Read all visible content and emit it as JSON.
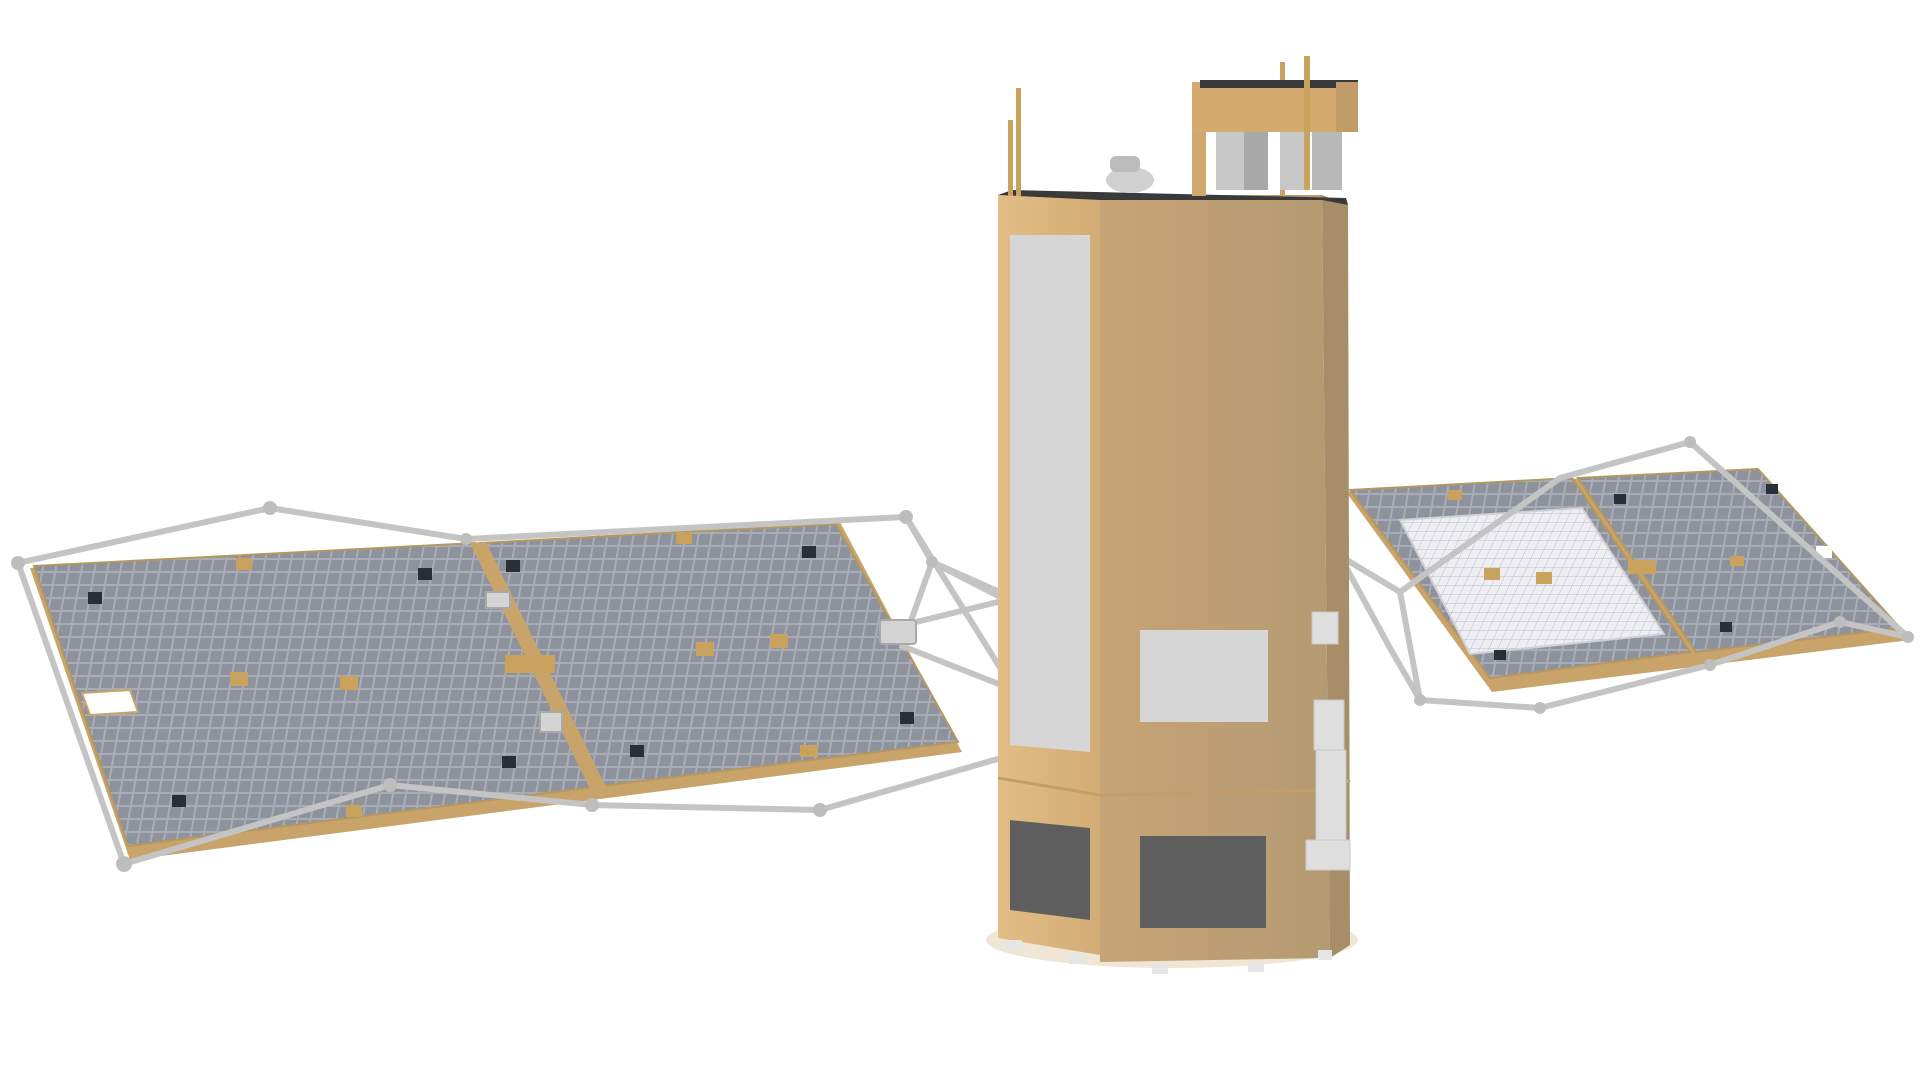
{
  "image": {
    "subject": "satellite-render",
    "background_color": "#ffffff"
  },
  "colors": {
    "bus_front": "#d9b27c",
    "bus_side": "#b89c72",
    "bus_top": "#3a3a3a",
    "panel_cells": "#8d929d",
    "panel_frame": "#c9a46a",
    "truss": "#c4c4c4",
    "radiator_light": "#d6d6d6",
    "radiator_dark": "#5e5e5e",
    "accent_pads": "#c9a35e",
    "mesh_area": "#eaeaee"
  },
  "components": [
    "bus-body",
    "left-solar-array",
    "right-solar-array",
    "support-truss",
    "top-instrument-mast",
    "radiator-panels"
  ]
}
